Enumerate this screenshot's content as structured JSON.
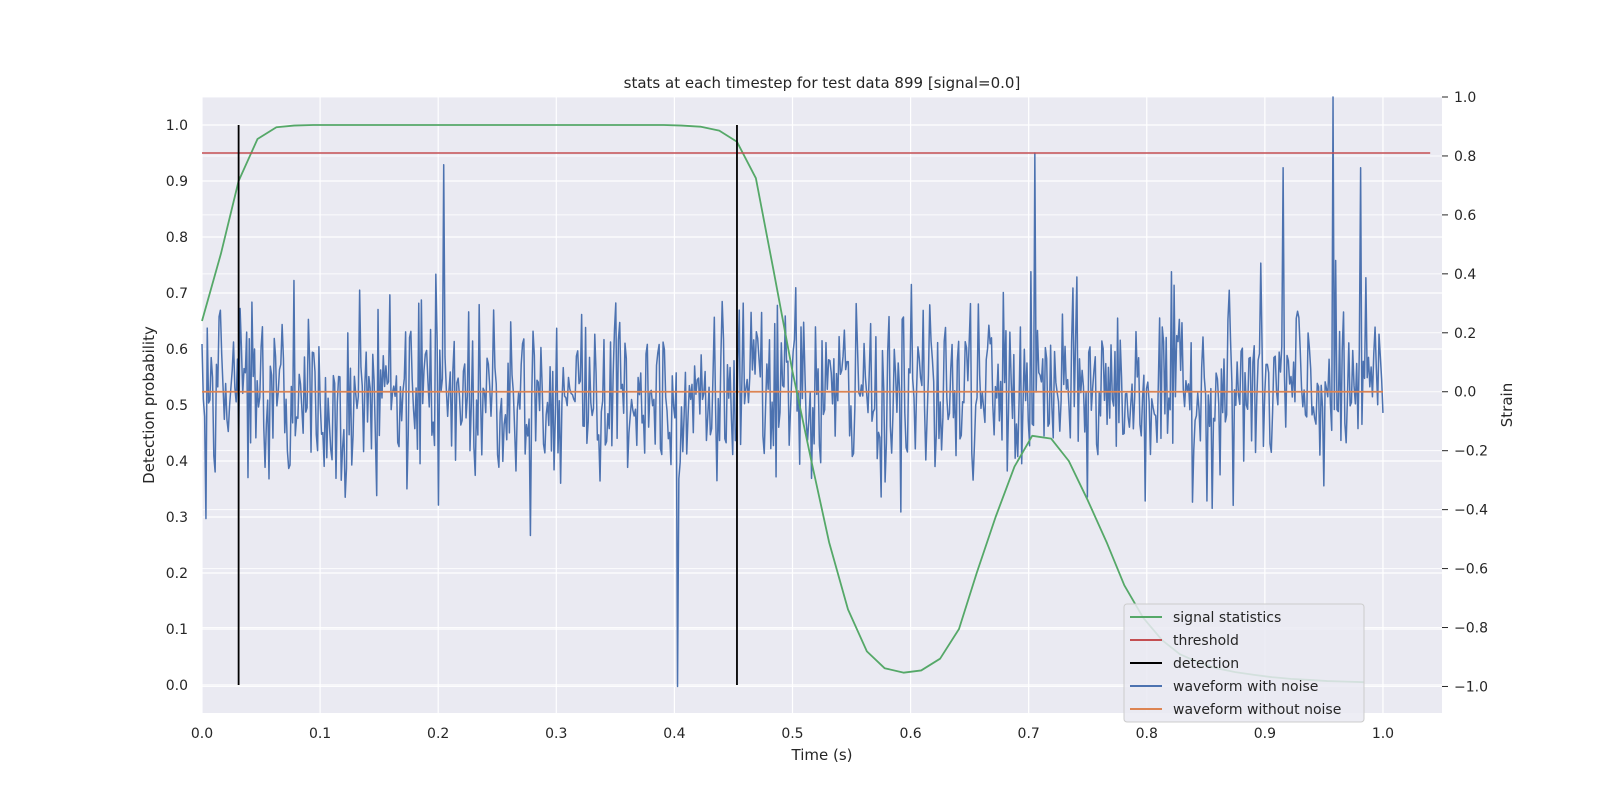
{
  "chart_data": {
    "type": "line",
    "title": "stats at each timestep for test data 899 [signal=0.0]",
    "xlabel": "Time (s)",
    "ylabel": "Detection probability",
    "y2label": "Strain",
    "xlim": [
      0.0,
      1.05
    ],
    "ylim": [
      -0.05,
      1.05
    ],
    "y2lim": [
      -1.09,
      1.0
    ],
    "x_ticks": [
      "0.0",
      "0.1",
      "0.2",
      "0.3",
      "0.4",
      "0.5",
      "0.6",
      "0.7",
      "0.8",
      "0.9",
      "1.0"
    ],
    "y_ticks": [
      "0.0",
      "0.1",
      "0.2",
      "0.3",
      "0.4",
      "0.5",
      "0.6",
      "0.7",
      "0.8",
      "0.9",
      "1.0"
    ],
    "y2_ticks": [
      "−1.0",
      "−0.8",
      "−0.6",
      "−0.4",
      "−0.2",
      "0.0",
      "0.2",
      "0.4",
      "0.6",
      "0.8",
      "1.0"
    ],
    "grid": true,
    "legend_position": "lower-right",
    "legend": [
      "signal statistics",
      "threshold",
      "detection",
      "waveform with noise",
      "waveform without noise"
    ],
    "colors": {
      "signal_statistics": "#55a868",
      "threshold": "#c44e52",
      "detection": "#000000",
      "waveform_with_noise": "#4c72b0",
      "waveform_without_noise": "#dd8452",
      "background": "#eaeaf2",
      "grid": "#ffffff"
    },
    "series": [
      {
        "name": "signal statistics",
        "axis": "left",
        "x": [
          0.0,
          0.016,
          0.031,
          0.047,
          0.063,
          0.078,
          0.094,
          0.109,
          0.125,
          0.141,
          0.156,
          0.172,
          0.188,
          0.203,
          0.219,
          0.234,
          0.25,
          0.266,
          0.281,
          0.297,
          0.313,
          0.328,
          0.344,
          0.359,
          0.375,
          0.391,
          0.406,
          0.422,
          0.438,
          0.453,
          0.469,
          0.484,
          0.5,
          0.516,
          0.531,
          0.547,
          0.563,
          0.578,
          0.594,
          0.609,
          0.625,
          0.641,
          0.656,
          0.672,
          0.688,
          0.703,
          0.719,
          0.734,
          0.75,
          0.766,
          0.781,
          0.797,
          0.813,
          0.828,
          0.844,
          0.859,
          0.875,
          0.891,
          0.906,
          0.922,
          0.938,
          0.953,
          0.969,
          0.984
        ],
        "values": [
          0.65,
          0.77,
          0.9,
          0.975,
          0.996,
          0.999,
          1.0,
          1.0,
          1.0,
          1.0,
          1.0,
          1.0,
          1.0,
          1.0,
          1.0,
          1.0,
          1.0,
          1.0,
          1.0,
          1.0,
          1.0,
          1.0,
          1.0,
          1.0,
          1.0,
          1.0,
          0.999,
          0.997,
          0.99,
          0.97,
          0.905,
          0.74,
          0.56,
          0.4,
          0.255,
          0.135,
          0.06,
          0.03,
          0.022,
          0.026,
          0.047,
          0.1,
          0.2,
          0.3,
          0.39,
          0.445,
          0.44,
          0.4,
          0.33,
          0.255,
          0.178,
          0.12,
          0.08,
          0.055,
          0.04,
          0.03,
          0.023,
          0.018,
          0.014,
          0.011,
          0.009,
          0.007,
          0.006,
          0.005
        ]
      },
      {
        "name": "threshold",
        "axis": "left",
        "x": [
          0.0,
          1.04
        ],
        "values": [
          0.95,
          0.95
        ]
      },
      {
        "name": "detection",
        "axis": "left",
        "type": "vertical-lines",
        "x": [
          0.031,
          0.453
        ],
        "ymin": 0.0,
        "ymax": 1.0
      },
      {
        "name": "waveform with noise",
        "axis": "right",
        "x_start": 0.0,
        "x_end": 1.0,
        "points": 900,
        "amplitude_std": 0.2,
        "peaks": [
          {
            "x": 0.958,
            "value": 1.0
          },
          {
            "x": 0.403,
            "value": -1.0
          },
          {
            "x": 0.705,
            "value": 0.81
          },
          {
            "x": 0.205,
            "value": 0.77
          },
          {
            "x": 0.915,
            "value": 0.76
          },
          {
            "x": 0.981,
            "value": 0.76
          }
        ]
      },
      {
        "name": "waveform without noise",
        "axis": "right",
        "x": [
          0.0,
          1.0
        ],
        "values": [
          0.0,
          0.0
        ]
      }
    ]
  }
}
